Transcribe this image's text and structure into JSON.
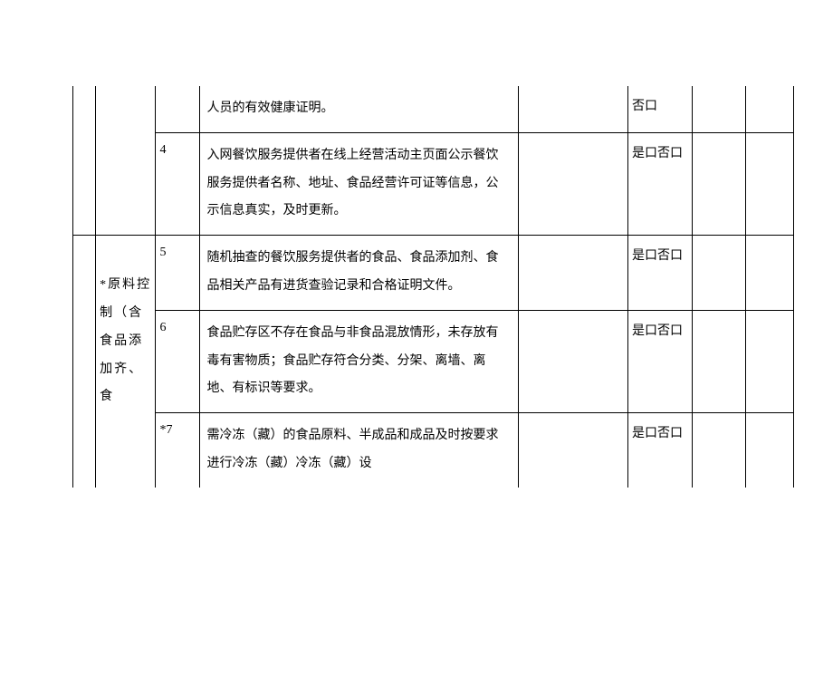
{
  "table": {
    "section2_label": "*原料控制（含食品添加齐、食",
    "rows": [
      {
        "num": "",
        "content": "人员的有效健康证明。",
        "yesno": "否口",
        "is_continuation": true
      },
      {
        "num": "4",
        "content": "入网餐饮服务提供者在线上经营活动主页面公示餐饮服务提供者名称、地址、食品经营许可证等信息，公示信息真实，及时更新。",
        "yesno": "是口否口"
      },
      {
        "num": "5",
        "content": "随机抽查的餐饮服务提供者的食品、食品添加剂、食品相关产品有进货查验记录和合格证明文件。",
        "yesno": "是口否口"
      },
      {
        "num": "6",
        "content": "食品贮存区不存在食品与非食品混放情形，未存放有毒有害物质；食品贮存符合分类、分架、离墙、离地、有标识等要求。",
        "yesno": "是口否口"
      },
      {
        "num": "*7",
        "content": "需冷冻（藏）的食品原料、半成品和成品及时按要求进行冷冻（藏）冷冻（藏）设",
        "yesno": "是口否口",
        "open_bottom": true
      }
    ],
    "colors": {
      "border": "#000000",
      "text": "#000000",
      "background": "#ffffff"
    },
    "font_size": 14
  }
}
